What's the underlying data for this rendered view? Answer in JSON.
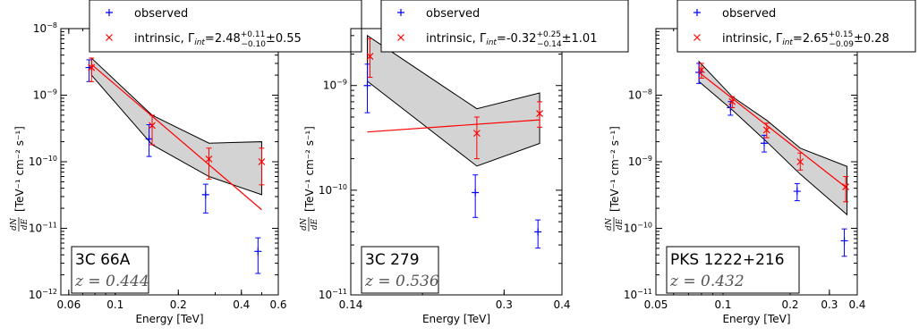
{
  "chart_data": [
    {
      "type": "scatter",
      "source_name": "3C 66A",
      "redshift": "z = 0.444",
      "xlabel": "Energy [TeV]",
      "ylabel": "[TeV⁻¹ cm⁻² s⁻¹]",
      "ylabel_fraction": {
        "num": "dN",
        "den": "dE"
      },
      "xscale": "log",
      "yscale": "log",
      "xlim": [
        0.055,
        0.6
      ],
      "ylim": [
        1e-12,
        1e-08
      ],
      "x_ticks": [
        0.06,
        0.1,
        0.2,
        0.4,
        0.6
      ],
      "x_tick_labels": [
        "0.06",
        "0.1",
        "0.2",
        "0.4",
        "0.6"
      ],
      "y_ticks": [
        1e-12,
        1e-11,
        1e-10,
        1e-09,
        1e-08
      ],
      "y_tick_labels": [
        [
          "10",
          "−12"
        ],
        [
          "10",
          "−11"
        ],
        [
          "10",
          "−10"
        ],
        [
          "10",
          "−9"
        ],
        [
          "10",
          "−8"
        ]
      ],
      "legend": {
        "observed": "observed",
        "intrinsic_prefix": "intrinsic, Γ",
        "intrinsic_sub": "int",
        "gamma_value": "=2.48",
        "gamma_up": "+0.11",
        "gamma_down": "−0.10",
        "gamma_sys": "±0.55"
      },
      "series": [
        {
          "name": "observed",
          "color": "#0000ff",
          "marker": "plus",
          "x": [
            0.075,
            0.145,
            0.27,
            0.48
          ],
          "y": [
            2.6e-09,
            2.2e-10,
            3.2e-11,
            4.5e-12
          ],
          "yerr_low": [
            1.6e-09,
            1.2e-10,
            1.7e-11,
            2.1e-12
          ],
          "yerr_high": [
            3.4e-09,
            3.6e-10,
            4.6e-11,
            7.2e-12
          ]
        },
        {
          "name": "intrinsic",
          "color": "#ff0000",
          "marker": "x",
          "x": [
            0.077,
            0.15,
            0.28,
            0.5
          ],
          "y": [
            2.6e-09,
            3.5e-10,
            1.1e-10,
            1e-10
          ],
          "yerr_low": [
            1.6e-09,
            1.8e-10,
            5.5e-11,
            4.5e-11
          ],
          "yerr_high": [
            3.6e-09,
            5e-10,
            1.6e-10,
            1.6e-10
          ]
        }
      ],
      "fit_line": {
        "x": [
          0.077,
          0.5
        ],
        "y": [
          2.9e-09,
          1.9e-11
        ]
      },
      "band_upper": {
        "x": [
          0.077,
          0.15,
          0.28,
          0.5
        ],
        "y": [
          3.6e-09,
          5e-10,
          1.9e-10,
          2e-10
        ]
      },
      "band_lower": {
        "x": [
          0.077,
          0.15,
          0.28,
          0.5
        ],
        "y": [
          2e-09,
          1.8e-10,
          6e-11,
          3.2e-11
        ]
      }
    },
    {
      "type": "scatter",
      "source_name": "3C 279",
      "redshift": "z = 0.536",
      "xlabel": "Energy [TeV]",
      "ylabel": "[TeV⁻¹ cm⁻² s⁻¹]",
      "ylabel_fraction": {
        "num": "dN",
        "den": "dE"
      },
      "xscale": "log",
      "yscale": "log",
      "xlim": [
        0.14,
        0.4
      ],
      "ylim": [
        1e-11,
        3.5e-09
      ],
      "x_ticks": [
        0.14,
        0.3,
        0.4
      ],
      "x_tick_labels": [
        "0.14",
        "0.3",
        "0.4"
      ],
      "y_ticks": [
        1e-11,
        1e-10,
        1e-09
      ],
      "y_tick_labels": [
        [
          "10",
          "−11"
        ],
        [
          "10",
          "−10"
        ],
        [
          "10",
          "−9"
        ]
      ],
      "legend": {
        "observed": "observed",
        "intrinsic_prefix": "intrinsic, Γ",
        "intrinsic_sub": "int",
        "gamma_value": "=-0.32",
        "gamma_up": "+0.25",
        "gamma_down": "−0.14",
        "gamma_sys": "±1.01"
      },
      "series": [
        {
          "name": "observed",
          "color": "#0000ff",
          "marker": "plus",
          "x": [
            0.152,
            0.26,
            0.355
          ],
          "y": [
            1e-09,
            9.5e-11,
            4e-11
          ],
          "yerr_low": [
            5.5e-10,
            5.5e-11,
            2.8e-11
          ],
          "yerr_high": [
            1.6e-09,
            1.4e-10,
            5.2e-11
          ]
        },
        {
          "name": "intrinsic",
          "color": "#ff0000",
          "marker": "x",
          "x": [
            0.154,
            0.262,
            0.358
          ],
          "y": [
            1.9e-09,
            3.5e-10,
            5.4e-10
          ],
          "yerr_low": [
            1.2e-09,
            2e-10,
            4e-10
          ],
          "yerr_high": [
            2.8e-09,
            5e-10,
            7e-10
          ]
        }
      ],
      "fit_line": {
        "x": [
          0.152,
          0.358
        ],
        "y": [
          3.6e-10,
          4.7e-10
        ]
      },
      "band_upper": {
        "x": [
          0.152,
          0.262,
          0.358
        ],
        "y": [
          3e-09,
          6e-10,
          8.5e-10
        ]
      },
      "band_lower": {
        "x": [
          0.152,
          0.262,
          0.358
        ],
        "y": [
          1.1e-09,
          1.7e-10,
          2.8e-10
        ]
      }
    },
    {
      "type": "scatter",
      "source_name": "PKS 1222+216",
      "redshift": "z = 0.432",
      "xlabel": "Energy [TeV]",
      "ylabel": "[TeV⁻¹ cm⁻² s⁻¹]",
      "ylabel_fraction": {
        "num": "dN",
        "den": "dE"
      },
      "xscale": "log",
      "yscale": "log",
      "xlim": [
        0.05,
        0.4
      ],
      "ylim": [
        1e-11,
        1e-07
      ],
      "x_ticks": [
        0.05,
        0.1,
        0.2,
        0.3,
        0.4
      ],
      "x_tick_labels": [
        "0.05",
        "0.1",
        "0.2",
        "0.3",
        "0.4"
      ],
      "y_ticks": [
        1e-11,
        1e-10,
        1e-09,
        1e-08
      ],
      "y_tick_labels": [
        [
          "10",
          "−11"
        ],
        [
          "10",
          "−10"
        ],
        [
          "10",
          "−9"
        ],
        [
          "10",
          "−8"
        ]
      ],
      "legend": {
        "observed": "observed",
        "intrinsic_prefix": "intrinsic, Γ",
        "intrinsic_sub": "int",
        "gamma_value": "=2.65",
        "gamma_up": "+0.15",
        "gamma_down": "−0.09",
        "gamma_sys": "±0.28"
      },
      "series": [
        {
          "name": "observed",
          "color": "#0000ff",
          "marker": "plus",
          "x": [
            0.078,
            0.108,
            0.153,
            0.215,
            0.35
          ],
          "y": [
            2.2e-08,
            6.5e-09,
            1.9e-09,
            3.6e-10,
            6.5e-11
          ],
          "yerr_low": [
            1.5e-08,
            5e-09,
            1.4e-09,
            2.6e-10,
            3.8e-11
          ],
          "yerr_high": [
            3e-08,
            8e-09,
            2.5e-09,
            4.7e-10,
            9.8e-11
          ]
        },
        {
          "name": "intrinsic",
          "color": "#ff0000",
          "marker": "x",
          "x": [
            0.08,
            0.11,
            0.157,
            0.222,
            0.355
          ],
          "y": [
            2.4e-08,
            8e-09,
            3e-09,
            1e-09,
            4.2e-10
          ],
          "yerr_low": [
            1.8e-08,
            6.5e-09,
            2.3e-09,
            7.5e-10,
            2.5e-10
          ],
          "yerr_high": [
            3e-08,
            9.5e-09,
            3.8e-09,
            1.35e-09,
            6e-10
          ]
        }
      ],
      "fit_line": {
        "x": [
          0.078,
          0.36
        ],
        "y": [
          2.2e-08,
          4e-10
        ]
      },
      "band_upper": {
        "x": [
          0.078,
          0.11,
          0.157,
          0.222,
          0.36
        ],
        "y": [
          3.2e-08,
          9.5e-09,
          4.2e-09,
          1.6e-09,
          8.5e-10
        ]
      },
      "band_lower": {
        "x": [
          0.078,
          0.11,
          0.157,
          0.222,
          0.36
        ],
        "y": [
          1.6e-08,
          6e-09,
          2e-09,
          6.5e-10,
          1.6e-10
        ]
      }
    }
  ]
}
